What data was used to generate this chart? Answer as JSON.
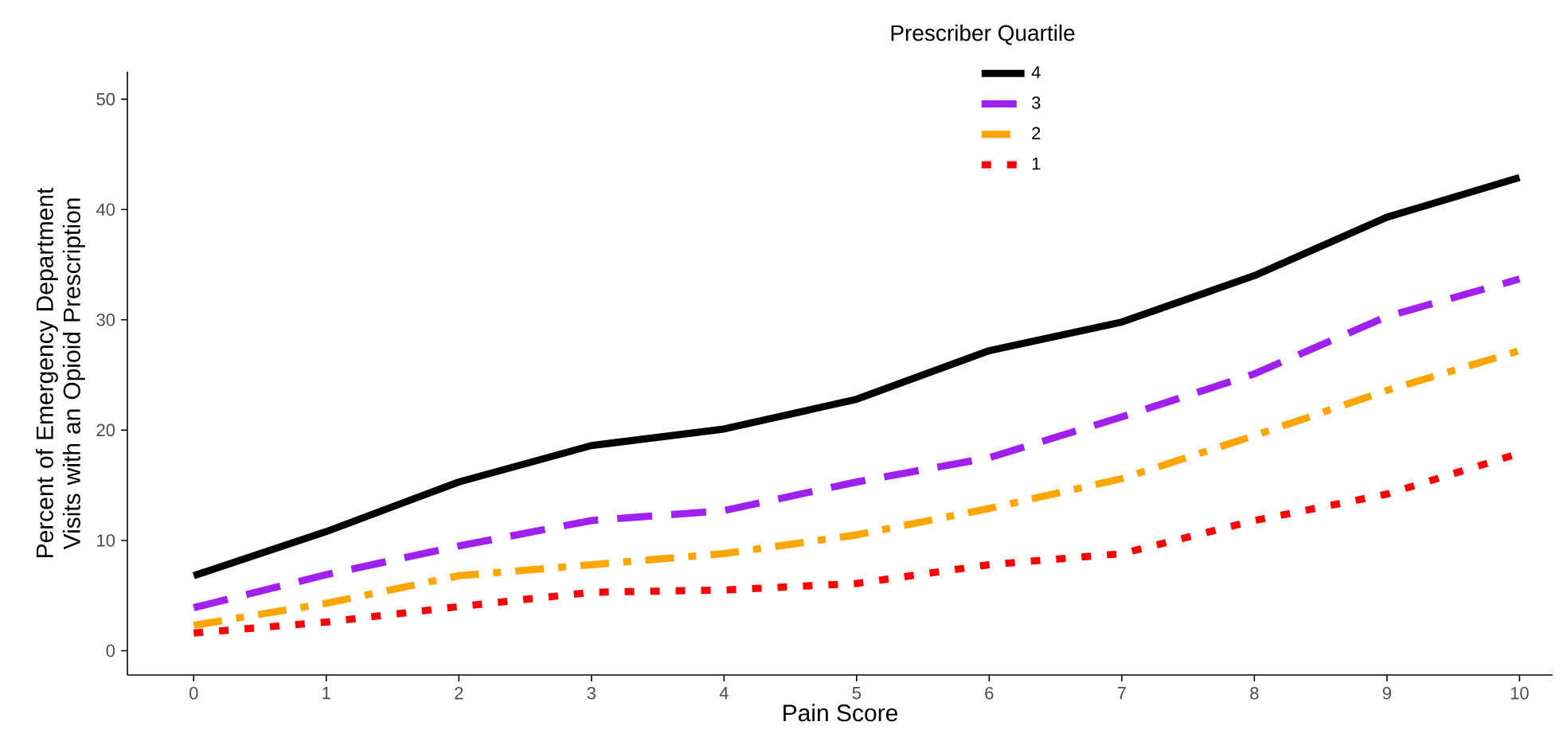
{
  "chart_data": {
    "type": "line",
    "xlabel": "Pain Score",
    "ylabel": "Percent of Emergency Department Visits with an Opioid Prescription",
    "legend_title": "Prescriber Quartile",
    "x": [
      0,
      1,
      2,
      3,
      4,
      5,
      6,
      7,
      8,
      9,
      10
    ],
    "series": [
      {
        "name": "4",
        "color": "#000000",
        "line_style": "solid",
        "values": [
          6.8,
          10.8,
          15.3,
          18.6,
          20.1,
          22.8,
          27.2,
          29.8,
          34.0,
          39.3,
          42.9
        ]
      },
      {
        "name": "3",
        "color": "#a020f0",
        "line_style": "dashed",
        "values": [
          3.9,
          6.9,
          9.5,
          11.8,
          12.7,
          15.3,
          17.5,
          21.2,
          25.1,
          30.3,
          33.7
        ]
      },
      {
        "name": "2",
        "color": "#ffa500",
        "line_style": "dashdot",
        "values": [
          2.3,
          4.3,
          6.8,
          7.8,
          8.8,
          10.5,
          12.9,
          15.6,
          19.5,
          23.6,
          27.2
        ]
      },
      {
        "name": "1",
        "color": "#ff0000",
        "line_style": "dotted",
        "values": [
          1.6,
          2.6,
          4.0,
          5.3,
          5.5,
          6.1,
          7.8,
          8.8,
          11.8,
          14.2,
          17.9
        ]
      }
    ],
    "xlim": [
      -0.5,
      10.25
    ],
    "ylim": [
      -2.2,
      52.5
    ],
    "xticks": [
      0,
      1,
      2,
      3,
      4,
      5,
      6,
      7,
      8,
      9,
      10
    ],
    "yticks": [
      0,
      10,
      20,
      30,
      40,
      50
    ],
    "grid": false,
    "legend": "top",
    "marker": "none"
  }
}
